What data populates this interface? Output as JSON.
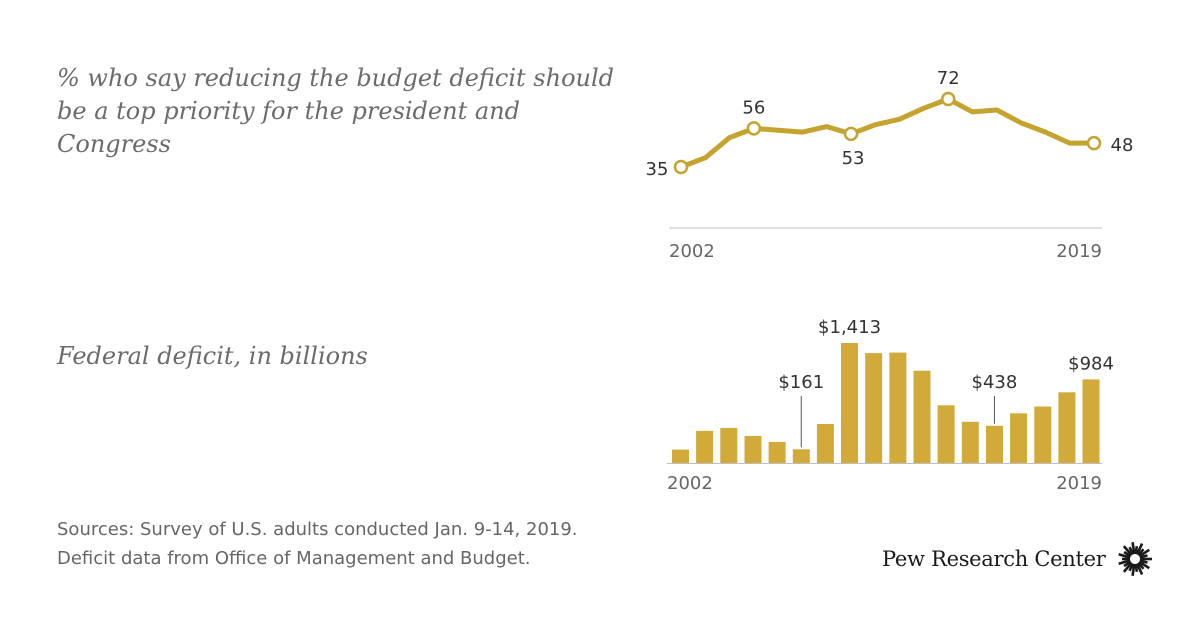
{
  "chart_data": [
    {
      "type": "line",
      "title": "% who say reducing the budget deficit should be a top priority for the president and Congress",
      "x": [
        2002,
        2003,
        2004,
        2005,
        2006,
        2007,
        2008,
        2009,
        2010,
        2011,
        2012,
        2013,
        2014,
        2015,
        2016,
        2017,
        2018,
        2019
      ],
      "values": [
        35,
        40,
        51,
        56,
        55,
        54,
        57,
        53,
        58,
        61,
        67,
        72,
        65,
        66,
        59,
        54,
        48,
        48
      ],
      "labeled_points": [
        {
          "x": 2002,
          "label": "35"
        },
        {
          "x": 2005,
          "label": "56"
        },
        {
          "x": 2009,
          "label": "53"
        },
        {
          "x": 2013,
          "label": "72"
        },
        {
          "x": 2019,
          "label": "48"
        }
      ],
      "x_tick_labels": [
        "2002",
        "2019"
      ],
      "color": "#c4a32e"
    },
    {
      "type": "bar",
      "title": "Federal deficit, in billions",
      "x": [
        2002,
        2003,
        2004,
        2005,
        2006,
        2007,
        2008,
        2009,
        2010,
        2011,
        2012,
        2013,
        2014,
        2015,
        2016,
        2017,
        2018,
        2019
      ],
      "values": [
        158,
        378,
        413,
        318,
        248,
        161,
        459,
        1413,
        1294,
        1300,
        1087,
        680,
        485,
        438,
        585,
        665,
        832,
        984
      ],
      "labeled_bars": [
        {
          "x": 2007,
          "label": "$161"
        },
        {
          "x": 2009,
          "label": "$1,413"
        },
        {
          "x": 2015,
          "label": "$438"
        },
        {
          "x": 2019,
          "label": "$984"
        }
      ],
      "x_tick_labels": [
        "2002",
        "2019"
      ],
      "color": "#d1aa3a"
    }
  ],
  "footer": {
    "sources_line1": "Sources: Survey of U.S. adults conducted Jan. 9-14, 2019.",
    "sources_line2": "Deficit data from Office of Management and Budget.",
    "brand": "Pew Research Center"
  }
}
